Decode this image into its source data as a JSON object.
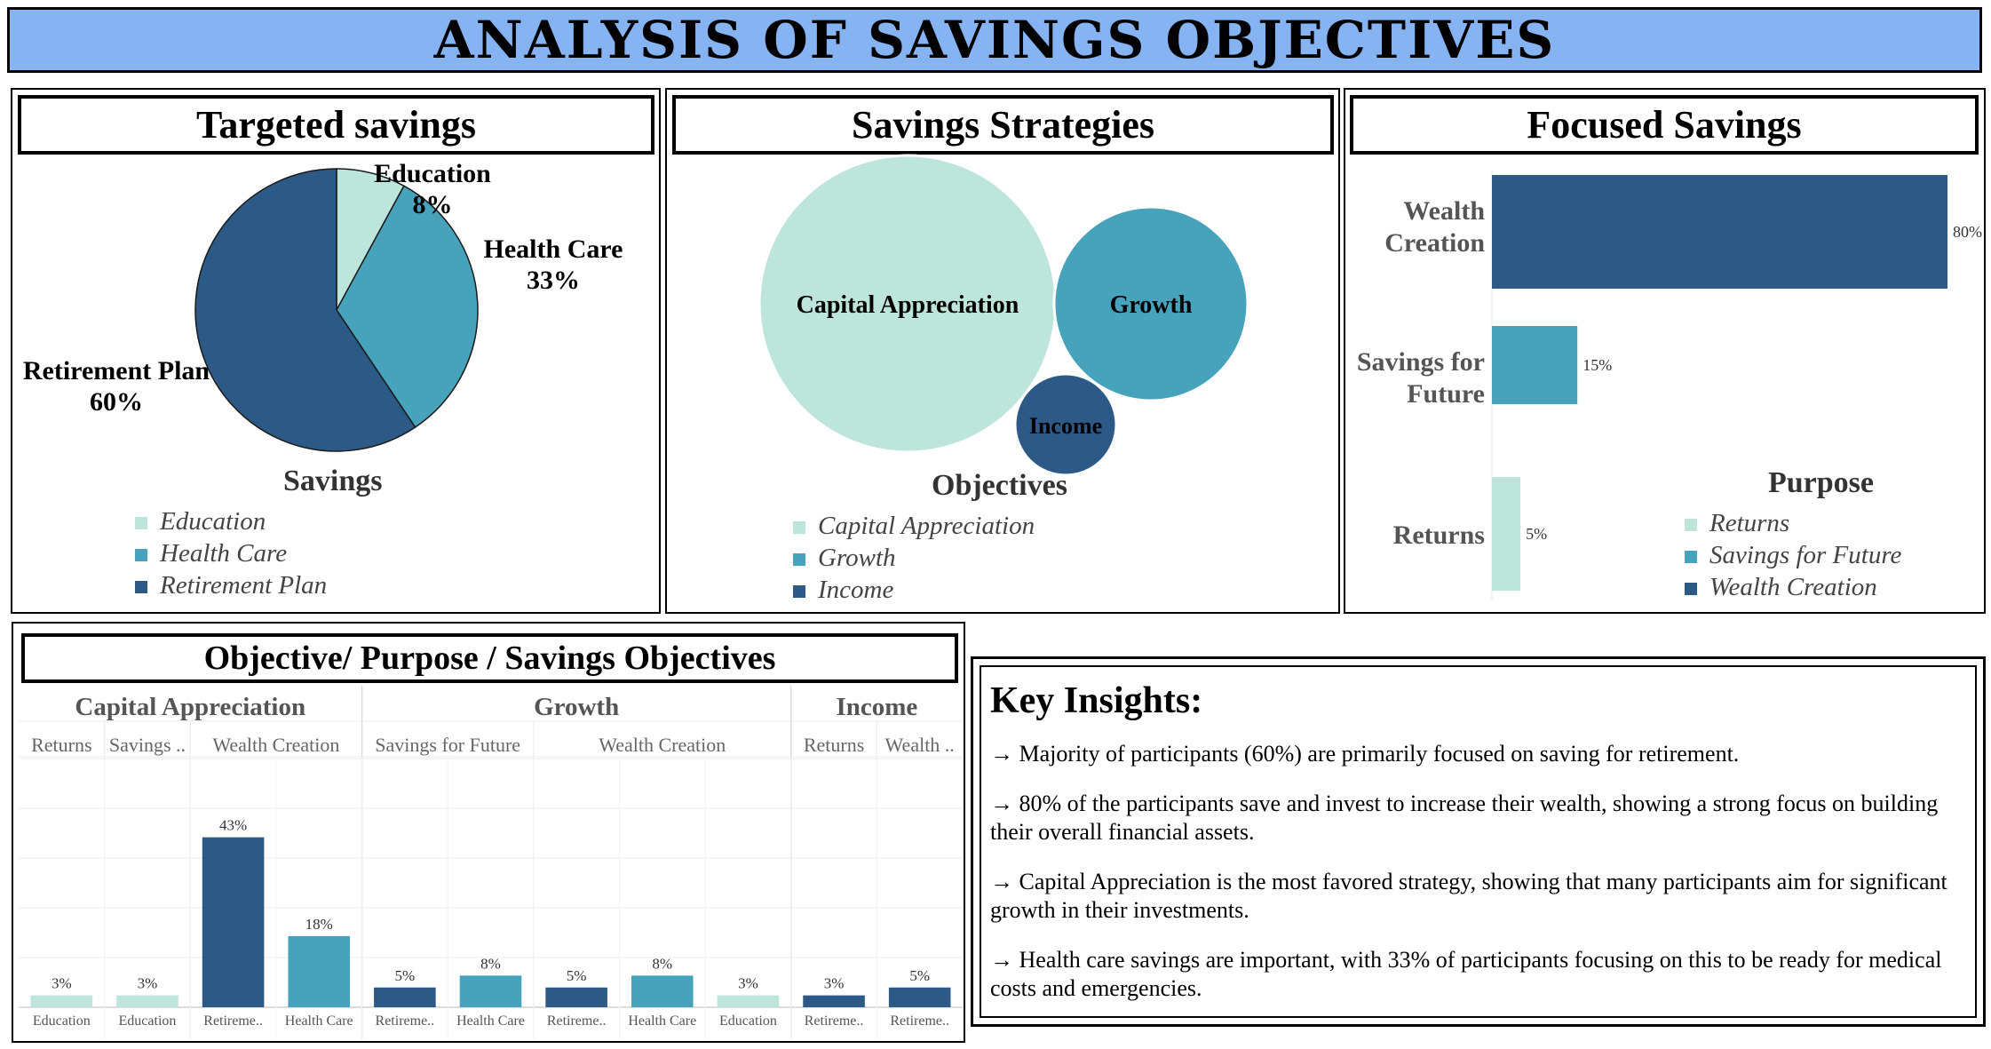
{
  "title": "ANALYSIS OF SAVINGS OBJECTIVES",
  "colors": {
    "light": "#bde5db",
    "mid": "#46a3bb",
    "dark": "#2c5985",
    "banner": "#86b3f2"
  },
  "chart_data": [
    {
      "id": "pie",
      "type": "pie",
      "title": "Targeted savings",
      "legend_title": "Savings",
      "categories": [
        "Education",
        "Health Care",
        "Retirement Plan"
      ],
      "values": [
        8,
        33,
        60
      ],
      "labels": [
        "8%",
        "33%",
        "60%"
      ],
      "colors": [
        "#bde5db",
        "#46a3bb",
        "#2c5985"
      ]
    },
    {
      "id": "bubble",
      "type": "bubble",
      "title": "Savings Strategies",
      "legend_title": "Objectives",
      "categories": [
        "Capital Appreciation",
        "Growth",
        "Income"
      ],
      "colors": [
        "#bde5db",
        "#46a3bb",
        "#2c5985"
      ]
    },
    {
      "id": "hbar",
      "type": "bar",
      "orientation": "horizontal",
      "title": "Focused Savings",
      "legend_title": "Purpose",
      "categories": [
        "Wealth Creation",
        "Savings for Future",
        "Returns"
      ],
      "values": [
        80,
        15,
        5
      ],
      "labels": [
        "80%",
        "15%",
        "5%"
      ],
      "colors": [
        "#2c5985",
        "#46a3bb",
        "#bde5db"
      ],
      "legend": [
        "Returns",
        "Savings for Future",
        "Wealth Creation"
      ],
      "legend_colors": [
        "#bde5db",
        "#46a3bb",
        "#2c5985"
      ],
      "xlim": [
        0,
        80
      ]
    },
    {
      "id": "grouped",
      "type": "bar",
      "title": "Objective/ Purpose / Savings Objectives",
      "ylim": [
        0,
        45
      ],
      "groups": [
        {
          "name": "Capital Appreciation",
          "purposes": [
            {
              "name": "Returns",
              "bars": [
                {
                  "label": "Education",
                  "value": 3,
                  "text": "3%",
                  "color": "#bde5db"
                }
              ]
            },
            {
              "name": "Savings ..",
              "bars": [
                {
                  "label": "Education",
                  "value": 3,
                  "text": "3%",
                  "color": "#bde5db"
                }
              ]
            },
            {
              "name": "Wealth Creation",
              "bars": [
                {
                  "label": "Retireme..",
                  "value": 43,
                  "text": "43%",
                  "color": "#2c5985"
                },
                {
                  "label": "Health Care",
                  "value": 18,
                  "text": "18%",
                  "color": "#46a3bb"
                }
              ]
            }
          ]
        },
        {
          "name": "Growth",
          "purposes": [
            {
              "name": "Savings for Future",
              "bars": [
                {
                  "label": "Retireme..",
                  "value": 5,
                  "text": "5%",
                  "color": "#2c5985"
                },
                {
                  "label": "Health Care",
                  "value": 8,
                  "text": "8%",
                  "color": "#46a3bb"
                }
              ]
            },
            {
              "name": "Wealth Creation",
              "bars": [
                {
                  "label": "Retireme..",
                  "value": 5,
                  "text": "5%",
                  "color": "#2c5985"
                },
                {
                  "label": "Health Care",
                  "value": 8,
                  "text": "8%",
                  "color": "#46a3bb"
                },
                {
                  "label": "Education",
                  "value": 3,
                  "text": "3%",
                  "color": "#bde5db"
                }
              ]
            }
          ]
        },
        {
          "name": "Income",
          "purposes": [
            {
              "name": "Returns",
              "bars": [
                {
                  "label": "Retireme..",
                  "value": 3,
                  "text": "3%",
                  "color": "#2c5985"
                }
              ]
            },
            {
              "name": "Wealth ..",
              "bars": [
                {
                  "label": "Retireme..",
                  "value": 5,
                  "text": "5%",
                  "color": "#2c5985"
                }
              ]
            }
          ]
        }
      ]
    }
  ],
  "insights": {
    "title": "Key Insights:",
    "items": [
      "→ Majority of participants (60%) are primarily focused on saving for retirement.",
      "→ 80% of the participants save and invest to increase their wealth, showing a strong focus on building their overall financial assets.",
      "→ Capital Appreciation is the most favored strategy, showing that many participants aim for significant growth in their investments.",
      "→ Health care savings are important, with 33% of participants focusing on this to be ready for medical costs and emergencies."
    ]
  }
}
